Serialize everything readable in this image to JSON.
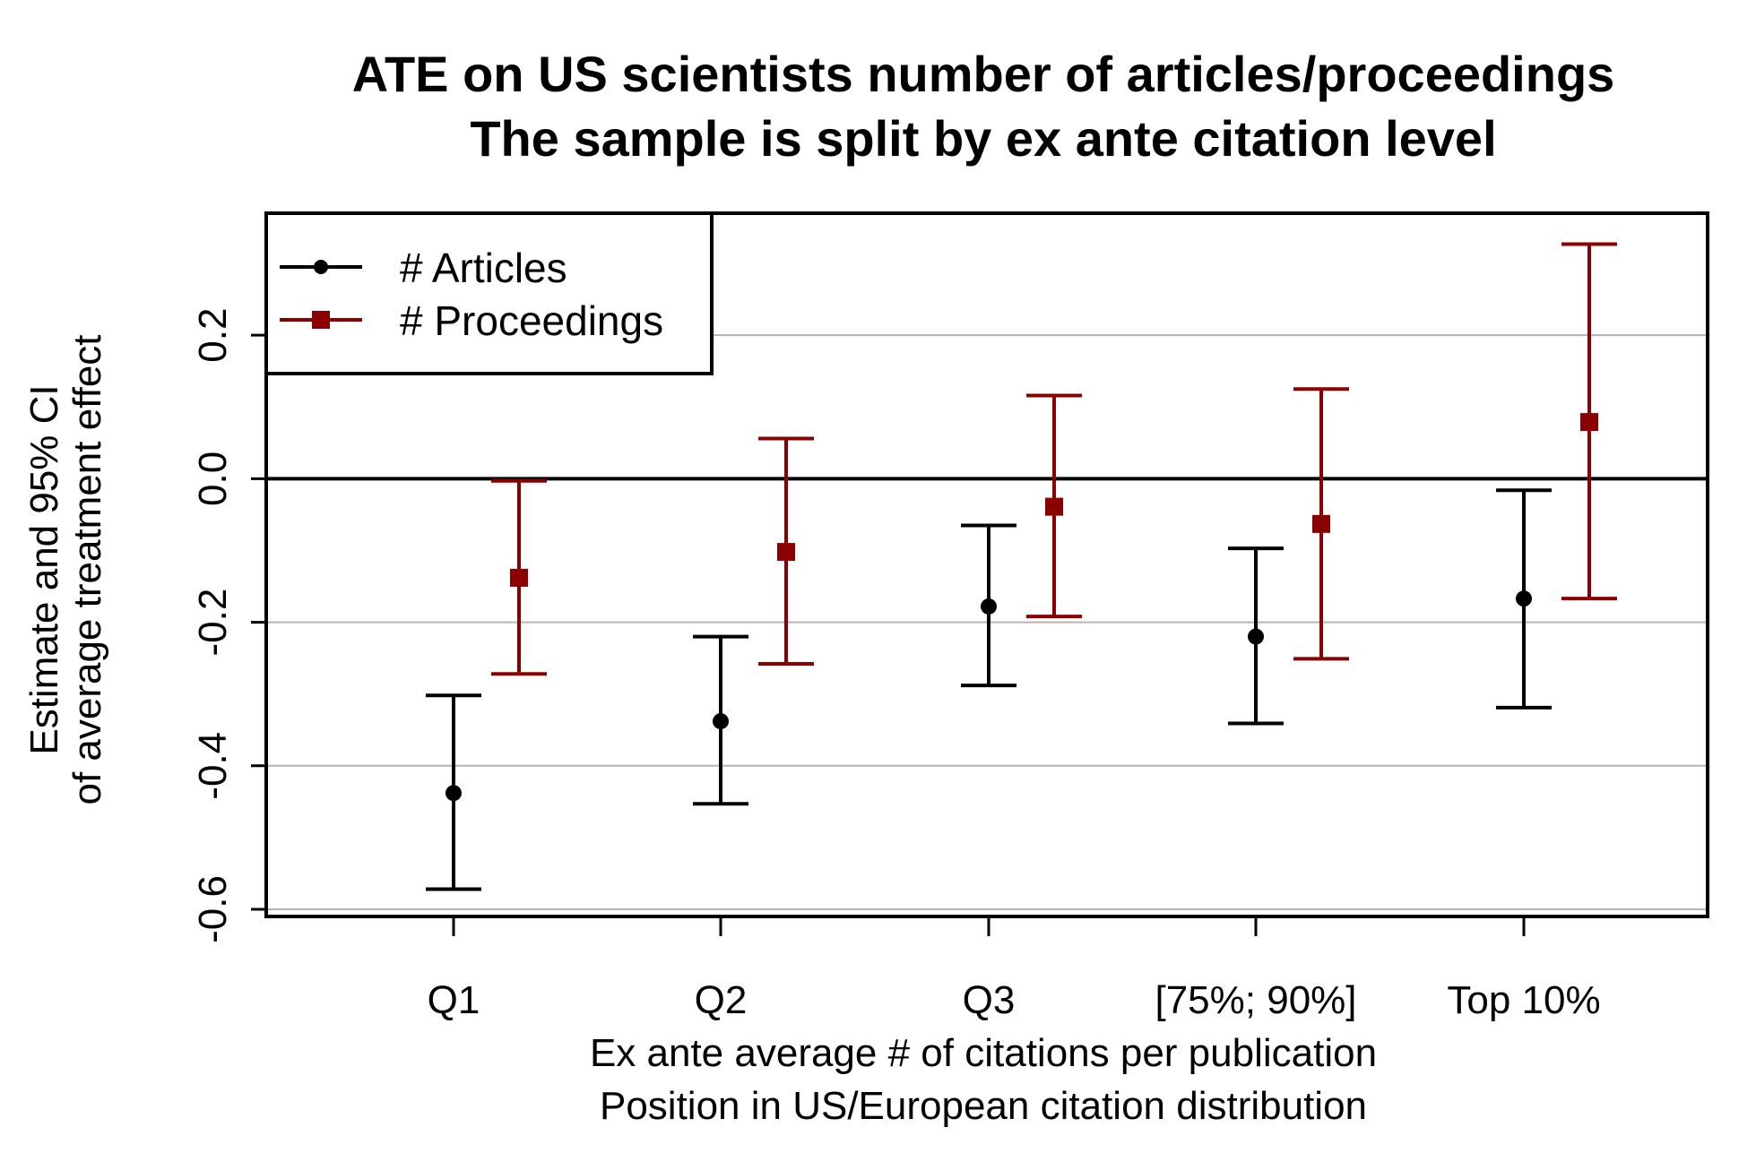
{
  "chart_data": {
    "type": "errorbar",
    "title_lines": [
      "ATE on US scientists number of articles/proceedings",
      "The sample is split by ex ante citation level"
    ],
    "xlabel_lines": [
      "Ex ante average # of citations per publication",
      "Position in US/European citation distribution"
    ],
    "ylabel_lines": [
      "Estimate and 95% CI",
      "of average treatment effect"
    ],
    "categories": [
      "Q1",
      "Q2",
      "Q3",
      "[75%; 90%]",
      "Top 10%"
    ],
    "yticks": [
      "0.2",
      "0.0",
      "-0.2",
      "-0.4",
      "-0.6"
    ],
    "ylim": [
      -0.61,
      0.37
    ],
    "grid": "horizontal",
    "legend_position": "top-left",
    "reference_line": 0,
    "series": [
      {
        "name": "# Articles",
        "color": "#000000",
        "marker": "circle",
        "estimates": [
          -0.438,
          -0.338,
          -0.178,
          -0.22,
          -0.167
        ],
        "ci_low": [
          -0.572,
          -0.453,
          -0.288,
          -0.341,
          -0.319
        ],
        "ci_high": [
          -0.302,
          -0.22,
          -0.065,
          -0.097,
          -0.016
        ]
      },
      {
        "name": "# Proceedings",
        "color": "#8b0000",
        "marker": "square",
        "estimates": [
          -0.138,
          -0.102,
          -0.039,
          -0.063,
          0.079
        ],
        "ci_low": [
          -0.272,
          -0.258,
          -0.192,
          -0.251,
          -0.167
        ],
        "ci_high": [
          -0.003,
          0.056,
          0.116,
          0.125,
          0.327
        ]
      }
    ]
  }
}
